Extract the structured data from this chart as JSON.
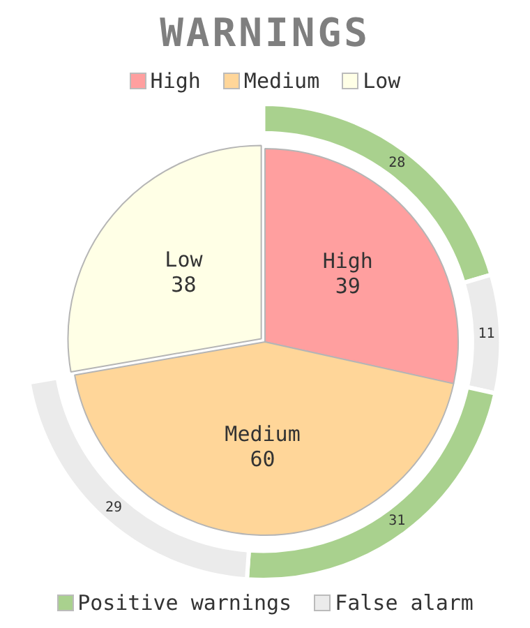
{
  "chart_data": [
    {
      "type": "pie",
      "title": "WARNINGS",
      "categories": [
        "High",
        "Medium",
        "Low"
      ],
      "values": [
        39,
        60,
        38
      ],
      "colors": [
        "#ff9f9f",
        "#ffd699",
        "#ffffe6"
      ],
      "legend": "top",
      "data_labels": true
    },
    {
      "type": "donut",
      "categories": [
        "Positive warnings",
        "False alarm",
        null,
        null
      ],
      "values": [
        28,
        11,
        31,
        29
      ],
      "colors": [
        "#a9d18e",
        "#ebebeb",
        "#a9d18e",
        "#ebebeb"
      ],
      "data_labels": true,
      "legend": "bottom"
    }
  ]
}
